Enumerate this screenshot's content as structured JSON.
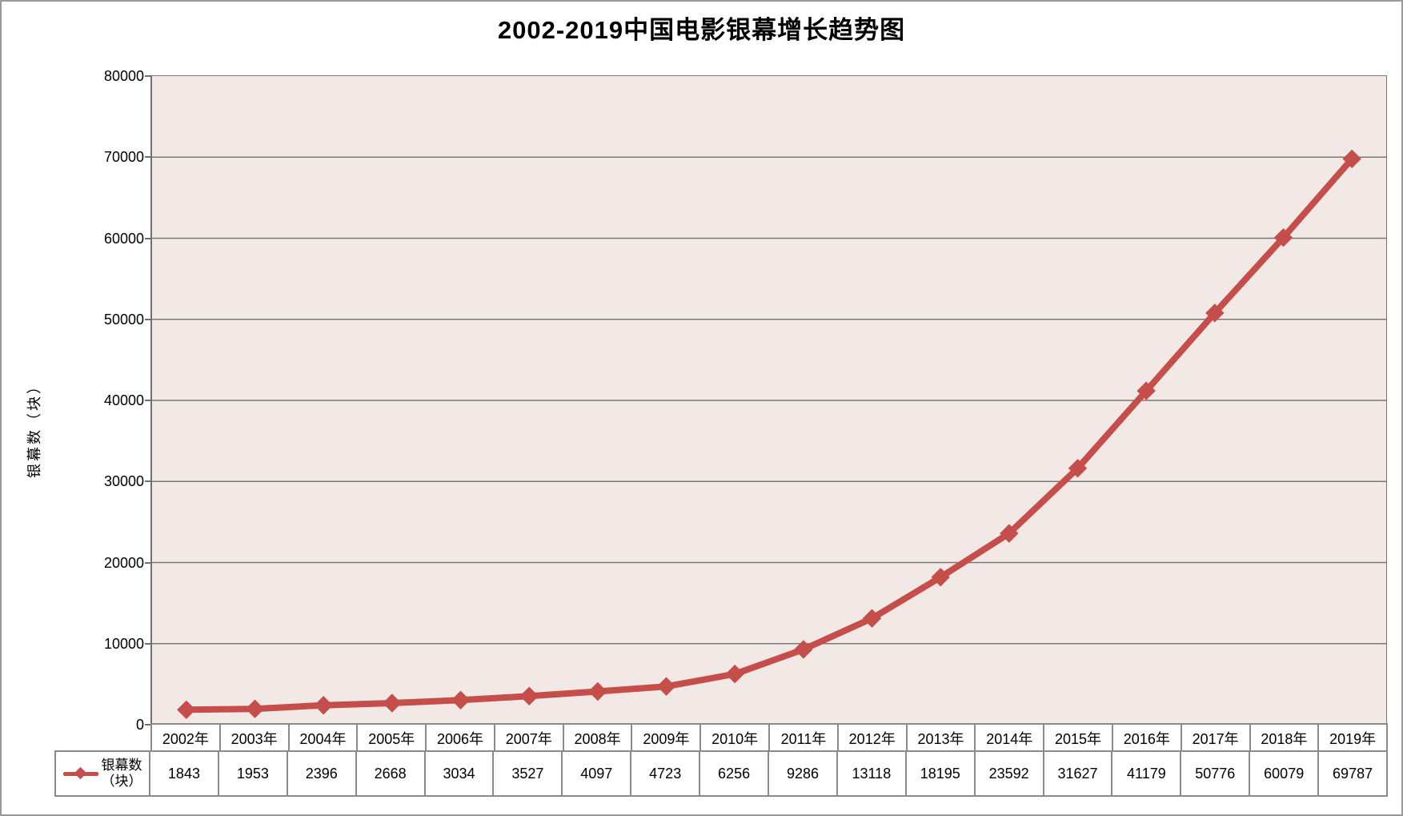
{
  "chart_data": {
    "type": "line",
    "title": "2002-2019中国电影银幕增长趋势图",
    "ylabel": "银幕数（块）",
    "xlabel": "",
    "categories": [
      "2002年",
      "2003年",
      "2004年",
      "2005年",
      "2006年",
      "2007年",
      "2008年",
      "2009年",
      "2010年",
      "2011年",
      "2012年",
      "2013年",
      "2014年",
      "2015年",
      "2016年",
      "2017年",
      "2018年",
      "2019年"
    ],
    "series": [
      {
        "name": "银幕数（块）",
        "values": [
          1843,
          1953,
          2396,
          2668,
          3034,
          3527,
          4097,
          4723,
          6256,
          9286,
          13118,
          18195,
          23592,
          31627,
          41179,
          50776,
          60079,
          69787
        ]
      }
    ],
    "ylim": [
      0,
      80000
    ],
    "ytick_step": 10000,
    "grid": true,
    "legend_position": "table-left",
    "marker": "diamond",
    "data_table_shown": true
  },
  "legend": {
    "label_line1": "银幕数",
    "label_line2": "（块）"
  },
  "style": {
    "line_color": "#C54E4A",
    "marker_color": "#C54E4A",
    "plot_bg": "#F2E9E7",
    "grid_color": "#7D7674",
    "axis_color": "#6F6F6F",
    "table_border_color": "#8A8A8A",
    "frame_border_color": "#9A9A9A",
    "text_color": "#000000"
  }
}
